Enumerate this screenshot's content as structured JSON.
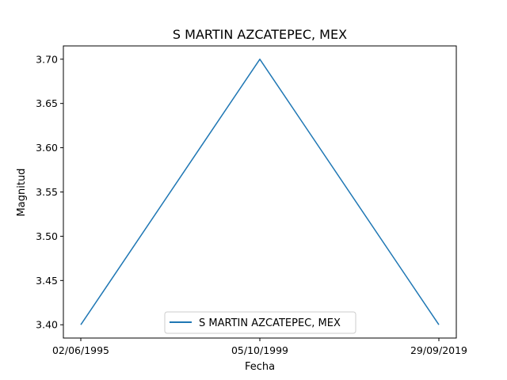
{
  "chart_data": {
    "type": "line",
    "title": "S MARTIN AZCATEPEC, MEX",
    "xlabel": "Fecha",
    "ylabel": "Magnitud",
    "categories": [
      "02/06/1995",
      "05/10/1999",
      "29/09/2019"
    ],
    "series": [
      {
        "name": "S MARTIN AZCATEPEC, MEX",
        "values": [
          3.4,
          3.7,
          3.4
        ],
        "color": "#1f77b4"
      }
    ],
    "yticks": [
      "3.40",
      "3.45",
      "3.50",
      "3.55",
      "3.60",
      "3.65",
      "3.70"
    ],
    "ylim": [
      3.385,
      3.715
    ],
    "grid": false,
    "legend": "lower center"
  }
}
